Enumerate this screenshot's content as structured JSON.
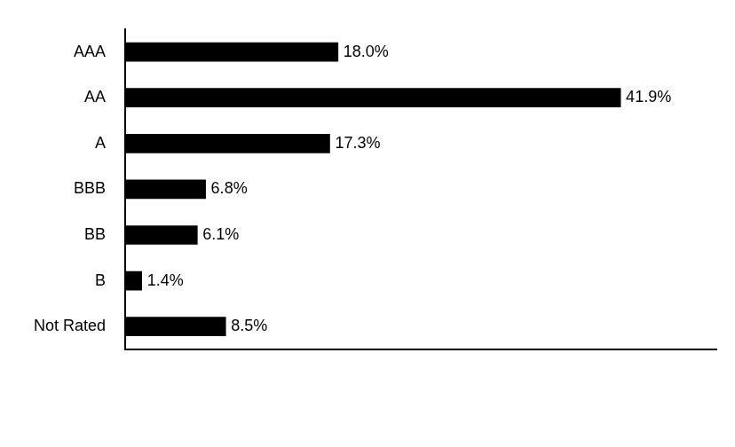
{
  "chart_data": {
    "type": "bar",
    "orientation": "horizontal",
    "categories": [
      "AAA",
      "AA",
      "A",
      "BBB",
      "BB",
      "B",
      "Not Rated"
    ],
    "values": [
      18.0,
      41.9,
      17.3,
      6.8,
      6.1,
      1.4,
      8.5
    ],
    "value_labels": [
      "18.0%",
      "41.9%",
      "17.3%",
      "6.8%",
      "6.1%",
      "1.4%",
      "8.5%"
    ],
    "color": "#000000",
    "xlim": [
      0,
      50
    ],
    "grid": false,
    "data_labels": true,
    "tick_labels": "y"
  }
}
